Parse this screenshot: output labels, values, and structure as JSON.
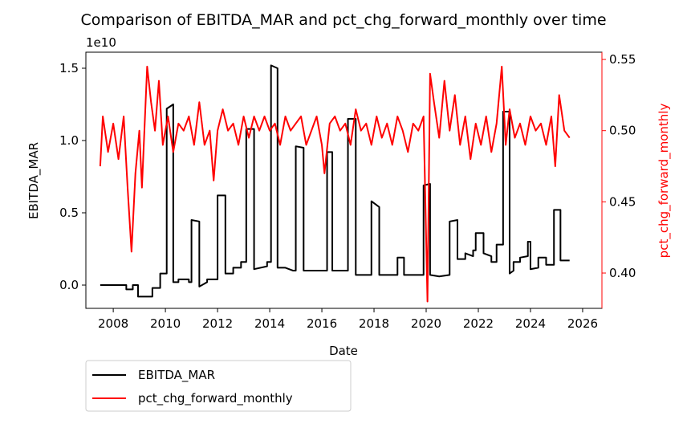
{
  "chart_data": {
    "type": "line",
    "title": "Comparison of EBITDA_MAR and pct_chg_forward_monthly over time",
    "xlabel": "Date",
    "ylabel": "EBITDA_MAR",
    "y2label": "pct_chg_forward_monthly",
    "y_offset_label": "1e10",
    "xlim": [
      2006.95,
      2026.74
    ],
    "xticks": [
      2008,
      2010,
      2012,
      2014,
      2016,
      2018,
      2020,
      2022,
      2024,
      2026
    ],
    "ylim": [
      -0.161,
      1.611
    ],
    "yticks": [
      {
        "value": 0,
        "label": "0.0"
      },
      {
        "value": 0.5,
        "label": "0.5"
      },
      {
        "value": 1,
        "label": "1.0"
      },
      {
        "value": 1.5,
        "label": "1.5"
      }
    ],
    "y2lim": [
      0.3752,
      0.5551
    ],
    "y2ticks": [
      {
        "value": 0.4,
        "label": "0.40"
      },
      {
        "value": 0.45,
        "label": "0.45"
      },
      {
        "value": 0.5,
        "label": "0.50"
      },
      {
        "value": 0.55,
        "label": "0.55"
      }
    ],
    "legend": "lower-left-outside",
    "series": [
      {
        "name": "EBITDA_MAR",
        "color": "#000000",
        "axis": "y",
        "x": [
          2007.5,
          2008.5,
          2008.5,
          2008.75,
          2008.75,
          2008.95,
          2008.95,
          2009.5,
          2009.5,
          2009.8,
          2009.8,
          2010.05,
          2010.05,
          2010.3,
          2010.3,
          2010.5,
          2010.5,
          2010.9,
          2010.9,
          2011.0,
          2011.0,
          2011.3,
          2011.3,
          2011.6,
          2011.6,
          2012.0,
          2012.0,
          2012.3,
          2012.3,
          2012.6,
          2012.6,
          2012.9,
          2012.9,
          2013.1,
          2013.1,
          2013.4,
          2013.4,
          2013.9,
          2013.9,
          2014.05,
          2014.05,
          2014.3,
          2014.3,
          2014.6,
          2014.9,
          2015.0,
          2015.0,
          2015.3,
          2015.3,
          2016.2,
          2016.2,
          2016.4,
          2016.4,
          2017.0,
          2017.0,
          2017.3,
          2017.3,
          2017.9,
          2017.9,
          2018.2,
          2018.2,
          2018.9,
          2018.9,
          2019.15,
          2019.15,
          2019.9,
          2019.9,
          2020.15,
          2020.15,
          2020.5,
          2020.9,
          2020.9,
          2021.2,
          2021.2,
          2021.5,
          2021.5,
          2021.8,
          2021.8,
          2021.9,
          2021.9,
          2022.2,
          2022.2,
          2022.5,
          2022.5,
          2022.7,
          2022.7,
          2022.95,
          2022.95,
          2023.2,
          2023.2,
          2023.35,
          2023.35,
          2023.6,
          2023.6,
          2023.9,
          2023.9,
          2024.0,
          2024.0,
          2024.3,
          2024.3,
          2024.6,
          2024.6,
          2024.9,
          2024.9,
          2025.15,
          2025.15,
          2025.5
        ],
        "values": [
          0,
          0,
          -0.03,
          -0.03,
          0,
          0,
          -0.08,
          -0.08,
          -0.02,
          -0.02,
          0.08,
          0.08,
          1.22,
          1.25,
          0.02,
          0.02,
          0.04,
          0.04,
          0.02,
          0.02,
          0.45,
          0.44,
          -0.01,
          0.02,
          0.04,
          0.04,
          0.62,
          0.62,
          0.08,
          0.08,
          0.12,
          0.12,
          0.16,
          0.16,
          1.08,
          1.08,
          0.11,
          0.13,
          0.16,
          0.16,
          1.52,
          1.5,
          0.12,
          0.12,
          0.1,
          0.1,
          0.96,
          0.95,
          0.1,
          0.1,
          0.92,
          0.92,
          0.1,
          0.1,
          1.15,
          1.15,
          0.07,
          0.07,
          0.58,
          0.54,
          0.07,
          0.07,
          0.19,
          0.19,
          0.07,
          0.07,
          0.69,
          0.7,
          0.07,
          0.06,
          0.07,
          0.44,
          0.45,
          0.18,
          0.18,
          0.22,
          0.2,
          0.24,
          0.24,
          0.36,
          0.36,
          0.22,
          0.2,
          0.16,
          0.16,
          0.28,
          0.28,
          1.2,
          1.2,
          0.08,
          0.1,
          0.16,
          0.16,
          0.19,
          0.2,
          0.3,
          0.3,
          0.11,
          0.12,
          0.19,
          0.19,
          0.14,
          0.14,
          0.52,
          0.52,
          0.17,
          0.17
        ]
      },
      {
        "name": "pct_chg_forward_monthly",
        "color": "#ff0000",
        "axis": "y2",
        "x": [
          2007.5,
          2007.6,
          2007.8,
          2008.0,
          2008.2,
          2008.4,
          2008.55,
          2008.7,
          2008.85,
          2009.0,
          2009.1,
          2009.3,
          2009.45,
          2009.6,
          2009.75,
          2009.9,
          2010.1,
          2010.3,
          2010.5,
          2010.7,
          2010.9,
          2011.1,
          2011.3,
          2011.5,
          2011.7,
          2011.85,
          2012.0,
          2012.2,
          2012.4,
          2012.6,
          2012.8,
          2013.0,
          2013.2,
          2013.4,
          2013.6,
          2013.8,
          2014.0,
          2014.2,
          2014.4,
          2014.6,
          2014.8,
          2015.0,
          2015.2,
          2015.4,
          2015.6,
          2015.8,
          2016.0,
          2016.1,
          2016.3,
          2016.5,
          2016.7,
          2016.9,
          2017.1,
          2017.3,
          2017.5,
          2017.7,
          2017.9,
          2018.1,
          2018.3,
          2018.5,
          2018.7,
          2018.9,
          2019.1,
          2019.3,
          2019.5,
          2019.7,
          2019.9,
          2020.05,
          2020.15,
          2020.3,
          2020.5,
          2020.7,
          2020.9,
          2021.1,
          2021.3,
          2021.5,
          2021.7,
          2021.9,
          2022.1,
          2022.3,
          2022.5,
          2022.7,
          2022.9,
          2023.05,
          2023.2,
          2023.4,
          2023.6,
          2023.8,
          2024.0,
          2024.2,
          2024.4,
          2024.6,
          2024.8,
          2024.95,
          2025.1,
          2025.3,
          2025.5
        ],
        "values": [
          0.475,
          0.51,
          0.485,
          0.505,
          0.48,
          0.51,
          0.46,
          0.415,
          0.47,
          0.5,
          0.46,
          0.545,
          0.52,
          0.5,
          0.535,
          0.49,
          0.51,
          0.485,
          0.505,
          0.5,
          0.51,
          0.49,
          0.52,
          0.49,
          0.5,
          0.465,
          0.5,
          0.515,
          0.5,
          0.505,
          0.49,
          0.51,
          0.495,
          0.51,
          0.5,
          0.51,
          0.5,
          0.505,
          0.49,
          0.51,
          0.5,
          0.505,
          0.51,
          0.49,
          0.5,
          0.51,
          0.49,
          0.47,
          0.505,
          0.51,
          0.5,
          0.505,
          0.49,
          0.515,
          0.5,
          0.505,
          0.49,
          0.51,
          0.495,
          0.505,
          0.49,
          0.51,
          0.5,
          0.485,
          0.505,
          0.5,
          0.51,
          0.38,
          0.54,
          0.52,
          0.495,
          0.535,
          0.5,
          0.525,
          0.49,
          0.51,
          0.48,
          0.505,
          0.49,
          0.51,
          0.485,
          0.505,
          0.545,
          0.49,
          0.515,
          0.495,
          0.505,
          0.49,
          0.51,
          0.5,
          0.505,
          0.49,
          0.51,
          0.475,
          0.525,
          0.5,
          0.495
        ]
      }
    ]
  }
}
